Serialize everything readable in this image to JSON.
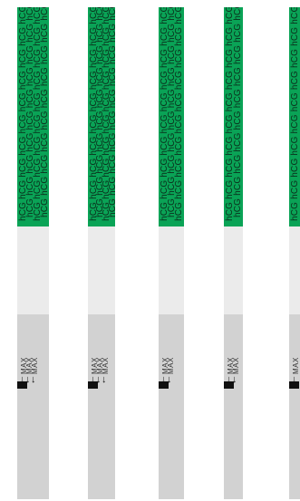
{
  "colors": {
    "green": "#0aa356",
    "light": "#ebebeb",
    "gray": "#d2d2d2",
    "dark_text": "#0b2f1c",
    "black": "#111111"
  },
  "strips": [
    {
      "hcg_label": "hCG",
      "max_label": "MAX"
    },
    {
      "hcg_label": "hCG",
      "max_label": "MAX"
    },
    {
      "hcg_label": "hCG",
      "max_label": "MAX"
    },
    {
      "hcg_label": "hCG",
      "max_label": "MAX"
    },
    {
      "hcg_label": "hCG",
      "max_label": "MAX"
    }
  ]
}
